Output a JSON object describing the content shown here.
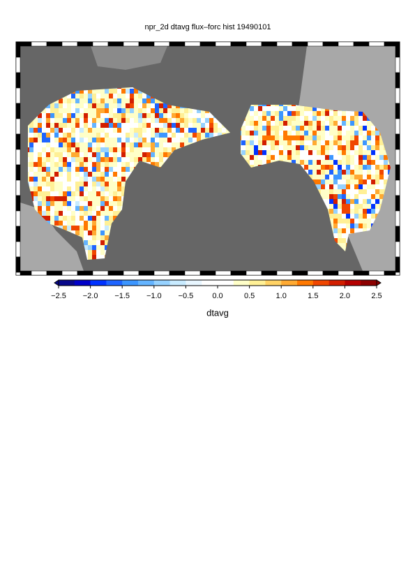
{
  "title": "npr_2d dtavg flux–forc hist 19490101",
  "colorbar": {
    "label": "dtavg",
    "lim": [
      -2.5,
      2.5
    ],
    "ticks": [
      {
        "value": -2.5,
        "label": "−2.5"
      },
      {
        "value": -2.0,
        "label": "−2.0"
      },
      {
        "value": -1.5,
        "label": "−1.5"
      },
      {
        "value": -1.0,
        "label": "−1.0"
      },
      {
        "value": -0.5,
        "label": "−0.5"
      },
      {
        "value": 0,
        "label": "0.0"
      },
      0.5,
      {
        "value": 1,
        "label": "1.0"
      },
      1.5,
      {
        "value": 2,
        "label": "2.0"
      },
      2.5
    ],
    "colors": [
      "#08088a",
      "#0000c8",
      "#0032ff",
      "#1e64ff",
      "#3c96ff",
      "#64b4ff",
      "#96d2ff",
      "#c8ebff",
      "#e8f6ff",
      "#ffffff",
      "#ffffff",
      "#ffffc8",
      "#fff096",
      "#ffd264",
      "#ffaa32",
      "#ff7800",
      "#f04600",
      "#d21e00",
      "#b40000",
      "#8c0000"
    ]
  }
}
